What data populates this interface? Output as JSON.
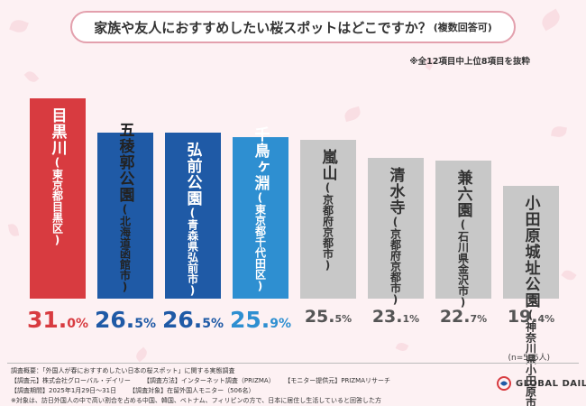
{
  "title": "家族や友人におすすめしたい桜スポットはどこですか？",
  "title_suffix": "(複数回答可)",
  "note_top": "※全12項目中上位8項目を抜粋",
  "n_note": "(n=506人)",
  "footer": {
    "line1": [
      "調査概要：「外国人が春におすすめしたい日本の桜スポット」に関する実態調査"
    ],
    "line2": [
      "【調査元】株式会社グローバル・デイリー",
      "【調査方法】インターネット調査（PRIZMA）",
      "【モニター提供元】PRIZMAリサーチ"
    ],
    "line3": [
      "【調査期間】2025年1月29日～31日",
      "【調査対象】在留外国人モニター（506名）"
    ],
    "line4": [
      "※対象は、訪日外国人の中で高い割合を占める中国、韓国、ベトナム、フィリピンの方で、日本に居住し生活していると回答した方"
    ]
  },
  "logo_text": "GLOBAL DAILY",
  "colors": {
    "top": "#d83b40",
    "second": "#1f5aa6",
    "fourth": "#2e8fd1",
    "rest": "#c8c8c8",
    "top_text": "#d83b40",
    "second_text": "#1f5aa6",
    "fourth_text": "#2e8fd1",
    "rest_text": "#555555"
  },
  "chart_data": {
    "type": "bar",
    "title": "家族や友人におすすめしたい桜スポットはどこですか？(複数回答可)",
    "unit": "%",
    "categories": [
      {
        "name": "目黒川",
        "pref": "(東京都目黒区)"
      },
      {
        "name": "五稜郭公園",
        "pref": "(北海道函館市)"
      },
      {
        "name": "弘前公園",
        "pref": "(青森県弘前市)"
      },
      {
        "name": "千鳥ヶ淵",
        "pref": "(東京都千代田区)"
      },
      {
        "name": "嵐山",
        "pref": "(京都府京都市)"
      },
      {
        "name": "清水寺",
        "pref": "(京都府京都市)"
      },
      {
        "name": "兼六園",
        "pref": "(石川県金沢市)"
      },
      {
        "name": "小田原城址公園",
        "pref": "(神奈川県小田原市)"
      }
    ],
    "values": [
      31.0,
      26.5,
      26.5,
      25.9,
      25.5,
      23.1,
      22.7,
      19.4
    ],
    "value_labels": [
      {
        "num": "31.",
        "dec": "0%"
      },
      {
        "num": "26.",
        "dec": "5%"
      },
      {
        "num": "26.",
        "dec": "5%"
      },
      {
        "num": "25.",
        "dec": "9%"
      },
      {
        "num": "25.",
        "dec": "5%"
      },
      {
        "num": "23.",
        "dec": "1%"
      },
      {
        "num": "22.",
        "dec": "7%"
      },
      {
        "num": "19.",
        "dec": "4%"
      }
    ]
  }
}
